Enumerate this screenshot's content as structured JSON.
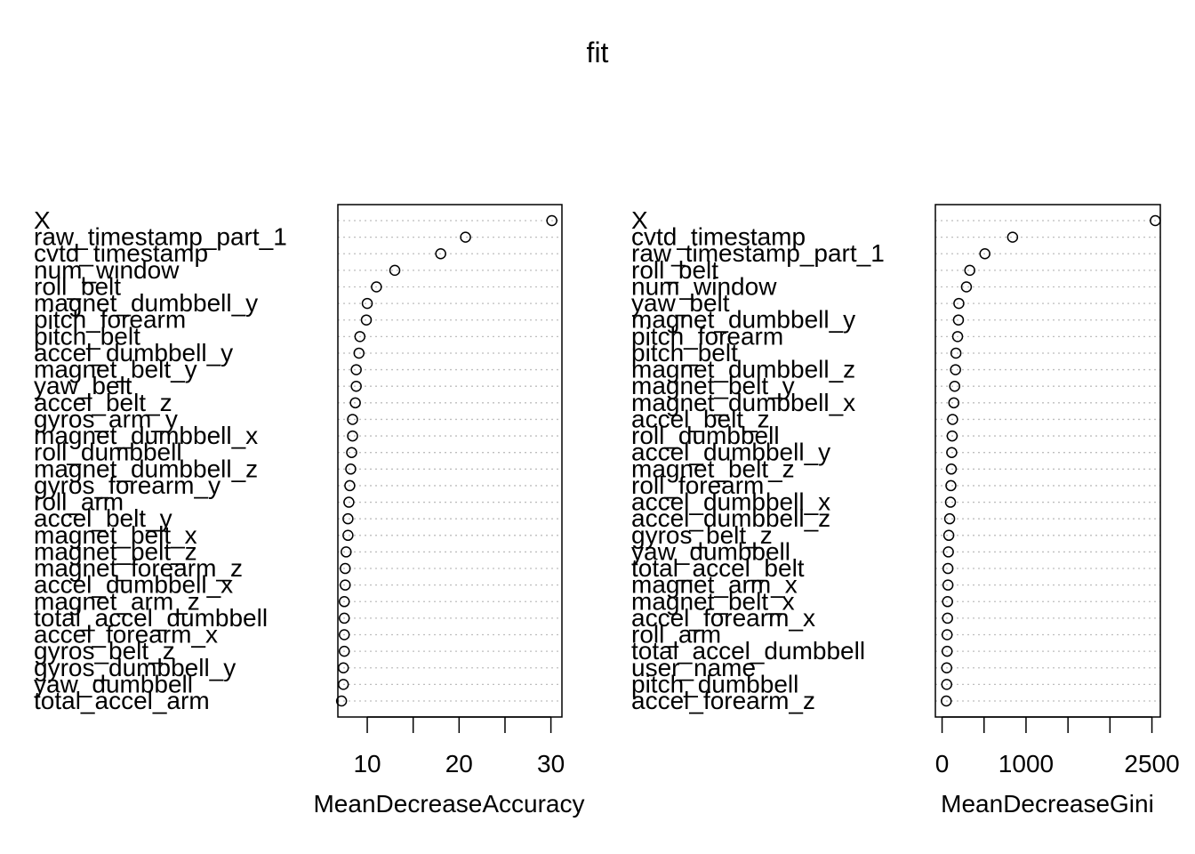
{
  "title": "fit",
  "chart_data": [
    {
      "type": "scatter",
      "variant": "dotchart",
      "xlabel": "MeanDecreaseAccuracy",
      "xlim": [
        6.8,
        31.2
      ],
      "xticks": [
        10,
        15,
        20,
        25,
        30
      ],
      "xtick_labels": [
        "10",
        "",
        "20",
        "",
        "30"
      ],
      "grid": "dotted horizontal",
      "categories": [
        "X",
        "raw_timestamp_part_1",
        "cvtd_timestamp",
        "num_window",
        "roll_belt",
        "magnet_dumbbell_y",
        "pitch_forearm",
        "pitch_belt",
        "accel_dumbbell_y",
        "magnet_belt_y",
        "yaw_belt",
        "accel_belt_z",
        "gyros_arm_y",
        "magnet_dumbbell_x",
        "roll_dumbbell",
        "magnet_dumbbell_z",
        "gyros_forearm_y",
        "roll_arm",
        "accel_belt_y",
        "magnet_belt_x",
        "magnet_belt_z",
        "magnet_forearm_z",
        "accel_dumbbell_x",
        "magnet_arm_z",
        "total_accel_dumbbell",
        "accel_forearm_x",
        "gyros_belt_z",
        "gyros_dumbbell_y",
        "yaw_dumbbell",
        "total_accel_arm"
      ],
      "values": [
        30.1,
        20.7,
        18.0,
        13.0,
        11.0,
        10.0,
        9.9,
        9.2,
        9.1,
        8.8,
        8.8,
        8.7,
        8.4,
        8.4,
        8.3,
        8.2,
        8.1,
        8.0,
        7.9,
        7.9,
        7.7,
        7.6,
        7.6,
        7.5,
        7.5,
        7.5,
        7.5,
        7.4,
        7.4,
        7.2
      ]
    },
    {
      "type": "scatter",
      "variant": "dotchart",
      "xlabel": "MeanDecreaseGini",
      "xlim": [
        -80,
        2600
      ],
      "xticks": [
        0,
        500,
        1000,
        1500,
        2000,
        2500
      ],
      "xtick_labels": [
        "0",
        "",
        "1000",
        "",
        "",
        "2500"
      ],
      "grid": "dotted horizontal",
      "categories": [
        "X",
        "cvtd_timestamp",
        "raw_timestamp_part_1",
        "roll_belt",
        "num_window",
        "yaw_belt",
        "magnet_dumbbell_y",
        "pitch_forearm",
        "pitch_belt",
        "magnet_dumbbell_z",
        "magnet_belt_y",
        "magnet_dumbbell_x",
        "accel_belt_z",
        "roll_dumbbell",
        "accel_dumbbell_y",
        "magnet_belt_z",
        "roll_forearm",
        "accel_dumbbell_x",
        "accel_dumbbell_z",
        "gyros_belt_z",
        "yaw_dumbbell",
        "total_accel_belt",
        "magnet_arm_x",
        "magnet_belt_x",
        "accel_forearm_x",
        "roll_arm",
        "total_accel_dumbbell",
        "user_name",
        "pitch_dumbbell",
        "accel_forearm_z"
      ],
      "values": [
        2540,
        840,
        510,
        330,
        290,
        200,
        195,
        185,
        165,
        160,
        150,
        140,
        125,
        120,
        115,
        110,
        105,
        100,
        90,
        80,
        75,
        70,
        70,
        65,
        65,
        60,
        60,
        55,
        55,
        50
      ]
    }
  ]
}
